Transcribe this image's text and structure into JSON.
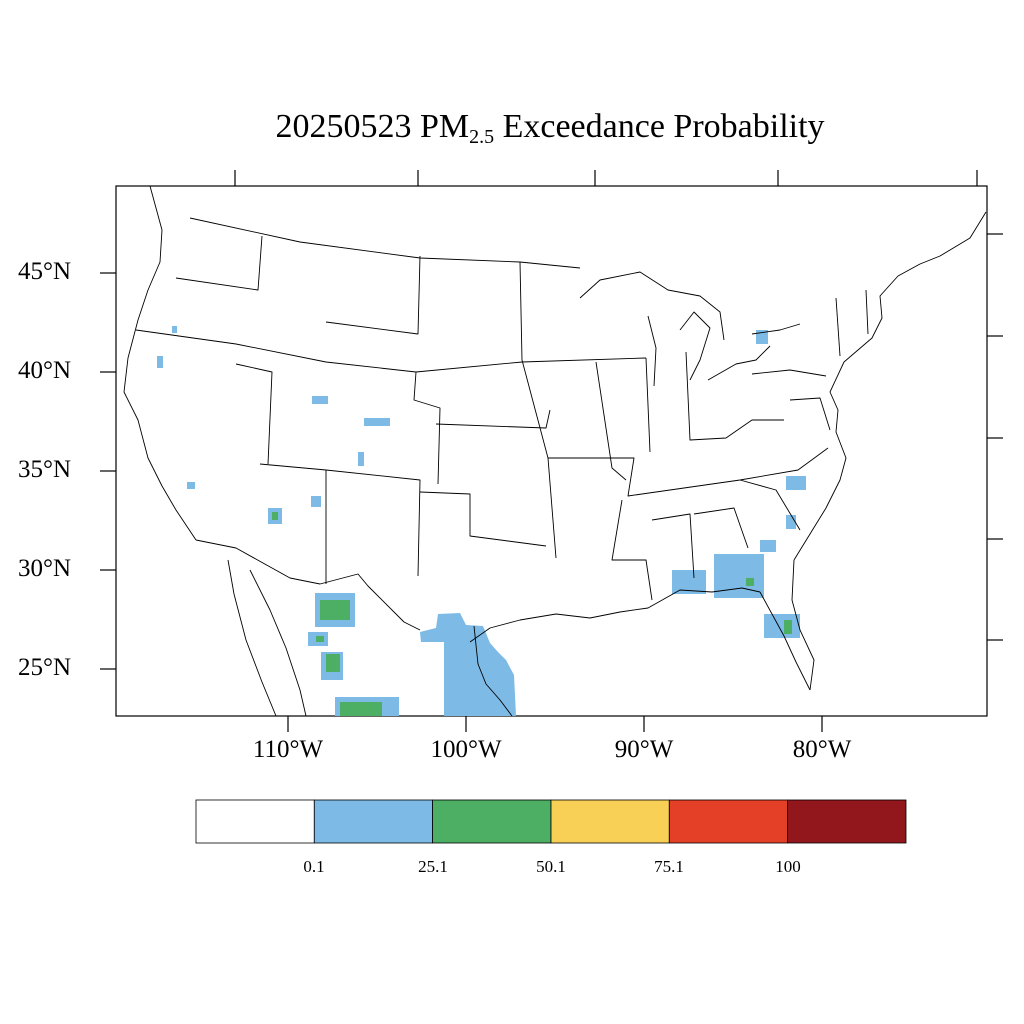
{
  "title": {
    "date": "20250523",
    "pollutant": "PM",
    "pollutant_sub": "2.5",
    "suffix": "Exceedance Probability"
  },
  "lat_labels": [
    "45°N",
    "40°N",
    "35°N",
    "30°N",
    "25°N"
  ],
  "lon_labels": [
    "110°W",
    "100°W",
    "90°W",
    "80°W"
  ],
  "legend": {
    "colors": [
      "#ffffff",
      "#7dbbe6",
      "#4caf64",
      "#f8d055",
      "#e34027",
      "#92171c"
    ],
    "labels": [
      "0.1",
      "25.1",
      "50.1",
      "75.1",
      "100"
    ]
  },
  "colors": {
    "blue": "#7dbbe6",
    "green": "#4caf64",
    "boundary": "#000000"
  }
}
